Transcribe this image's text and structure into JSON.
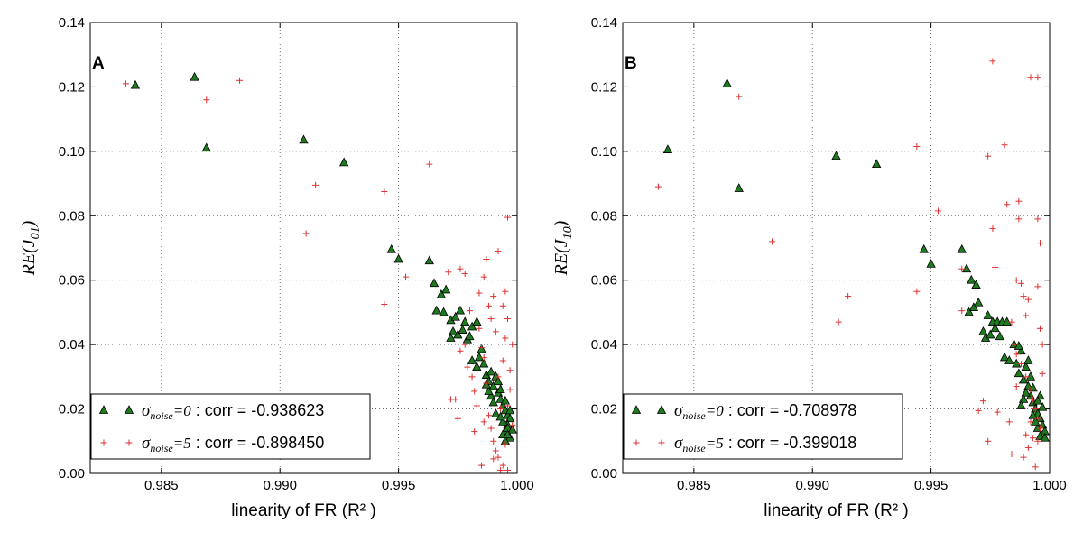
{
  "chart_data": [
    {
      "type": "scatter",
      "panel_letter": "A",
      "xlabel": "linearity of FR (R² )",
      "ylabel_text": "RE(J",
      "ylabel_sub": "01",
      "ylabel_close": ")",
      "xlim": [
        0.982,
        1.0
      ],
      "ylim": [
        0.0,
        0.14
      ],
      "xticks": [
        "0.985",
        "0.990",
        "0.995",
        "1.000"
      ],
      "xtick_values": [
        0.985,
        0.99,
        0.995,
        1.0
      ],
      "yticks": [
        "0.00",
        "0.02",
        "0.04",
        "0.06",
        "0.08",
        "0.10",
        "0.12",
        "0.14"
      ],
      "ytick_values": [
        0.0,
        0.02,
        0.04,
        0.06,
        0.08,
        0.1,
        0.12,
        0.14
      ],
      "grid": true,
      "legend_position": "lower-left",
      "series": [
        {
          "name": "σnoise=0 : corr = -0.938623",
          "legend_sigma": "σ",
          "legend_sub": "noise",
          "legend_eq": "=0",
          "legend_text": " : corr = -0.938623",
          "marker": "triangle",
          "color": "#1f7a1f",
          "points": [
            [
              0.9839,
              0.1205
            ],
            [
              0.9864,
              0.123
            ],
            [
              0.9869,
              0.101
            ],
            [
              0.991,
              0.1035
            ],
            [
              0.9927,
              0.0965
            ],
            [
              0.9947,
              0.0695
            ],
            [
              0.995,
              0.0665
            ],
            [
              0.9963,
              0.066
            ],
            [
              0.9965,
              0.059
            ],
            [
              0.9968,
              0.0555
            ],
            [
              0.997,
              0.057
            ],
            [
              0.9966,
              0.0505
            ],
            [
              0.9969,
              0.05
            ],
            [
              0.9972,
              0.0475
            ],
            [
              0.9974,
              0.0485
            ],
            [
              0.9976,
              0.0505
            ],
            [
              0.9978,
              0.047
            ],
            [
              0.9973,
              0.044
            ],
            [
              0.9972,
              0.042
            ],
            [
              0.9975,
              0.043
            ],
            [
              0.9977,
              0.0445
            ],
            [
              0.9979,
              0.0415
            ],
            [
              0.998,
              0.0425
            ],
            [
              0.9981,
              0.0455
            ],
            [
              0.9983,
              0.047
            ],
            [
              0.9981,
              0.035
            ],
            [
              0.9983,
              0.033
            ],
            [
              0.9984,
              0.036
            ],
            [
              0.9985,
              0.0385
            ],
            [
              0.9986,
              0.034
            ],
            [
              0.9987,
              0.0305
            ],
            [
              0.9988,
              0.0285
            ],
            [
              0.9989,
              0.0315
            ],
            [
              0.999,
              0.027
            ],
            [
              0.9991,
              0.03
            ],
            [
              0.9992,
              0.025
            ],
            [
              0.9993,
              0.023
            ],
            [
              0.9994,
              0.021
            ],
            [
              0.9995,
              0.0195
            ],
            [
              0.9996,
              0.018
            ],
            [
              0.9997,
              0.017
            ],
            [
              0.9996,
              0.015
            ],
            [
              0.9995,
              0.013
            ],
            [
              0.9994,
              0.012
            ],
            [
              0.9997,
              0.011
            ],
            [
              0.9996,
              0.014
            ],
            [
              0.9993,
              0.026
            ],
            [
              0.9992,
              0.0285
            ],
            [
              0.9989,
              0.024
            ],
            [
              0.9988,
              0.0255
            ],
            [
              0.9995,
              0.01
            ],
            [
              0.9994,
              0.016
            ],
            [
              0.9997,
              0.0195
            ],
            [
              0.9998,
              0.0135
            ],
            [
              0.999,
              0.022
            ],
            [
              0.9991,
              0.0185
            ],
            [
              0.9987,
              0.0275
            ],
            [
              0.9993,
              0.0175
            ],
            [
              0.9995,
              0.0225
            ],
            [
              0.9996,
              0.012
            ]
          ]
        },
        {
          "name": "σnoise=5 : corr = -0.898450",
          "legend_sigma": "σ",
          "legend_sub": "noise",
          "legend_eq": "=5",
          "legend_text": " : corr = -0.898450",
          "marker": "plus",
          "color": "#e03030",
          "points": [
            [
              0.9835,
              0.121
            ],
            [
              0.9869,
              0.116
            ],
            [
              0.9883,
              0.122
            ],
            [
              0.9911,
              0.0745
            ],
            [
              0.9915,
              0.0895
            ],
            [
              0.9944,
              0.0875
            ],
            [
              0.9944,
              0.0525
            ],
            [
              0.9963,
              0.096
            ],
            [
              0.9953,
              0.061
            ],
            [
              0.9971,
              0.0625
            ],
            [
              0.9976,
              0.0635
            ],
            [
              0.998,
              0.0505
            ],
            [
              0.9978,
              0.062
            ],
            [
              0.9984,
              0.056
            ],
            [
              0.9986,
              0.061
            ],
            [
              0.9987,
              0.0665
            ],
            [
              0.999,
              0.055
            ],
            [
              0.9992,
              0.069
            ],
            [
              0.9995,
              0.0565
            ],
            [
              0.9996,
              0.0795
            ],
            [
              0.9972,
              0.023
            ],
            [
              0.9974,
              0.023
            ],
            [
              0.9975,
              0.017
            ],
            [
              0.9976,
              0.038
            ],
            [
              0.9978,
              0.04
            ],
            [
              0.9979,
              0.033
            ],
            [
              0.9981,
              0.03
            ],
            [
              0.9982,
              0.0255
            ],
            [
              0.9983,
              0.021
            ],
            [
              0.9984,
              0.045
            ],
            [
              0.9985,
              0.039
            ],
            [
              0.9986,
              0.036
            ],
            [
              0.9987,
              0.028
            ],
            [
              0.9988,
              0.018
            ],
            [
              0.9989,
              0.014
            ],
            [
              0.999,
              0.01
            ],
            [
              0.9991,
              0.007
            ],
            [
              0.9992,
              0.005
            ],
            [
              0.9993,
              0.02
            ],
            [
              0.9994,
              0.035
            ],
            [
              0.9995,
              0.042
            ],
            [
              0.9996,
              0.048
            ],
            [
              0.9997,
              0.026
            ],
            [
              0.9998,
              0.015
            ],
            [
              0.9996,
              0.001
            ],
            [
              0.9985,
              0.0025
            ],
            [
              0.999,
              0.0045
            ],
            [
              0.9993,
              0.001
            ],
            [
              0.9995,
              0.009
            ],
            [
              0.9997,
              0.032
            ],
            [
              0.9994,
              0.052
            ],
            [
              0.9991,
              0.044
            ],
            [
              0.9989,
              0.048
            ],
            [
              0.9988,
              0.052
            ],
            [
              0.9998,
              0.04
            ],
            [
              0.9982,
              0.013
            ],
            [
              0.9986,
              0.016
            ],
            [
              0.9992,
              0.03
            ],
            [
              0.9996,
              0.021
            ],
            [
              0.9994,
              0.0025
            ]
          ]
        }
      ]
    },
    {
      "type": "scatter",
      "panel_letter": "B",
      "xlabel": "linearity of FR (R² )",
      "ylabel_text": "RE(J",
      "ylabel_sub": "10",
      "ylabel_close": ")",
      "xlim": [
        0.982,
        1.0
      ],
      "ylim": [
        0.0,
        0.14
      ],
      "xticks": [
        "0.985",
        "0.990",
        "0.995",
        "1.000"
      ],
      "xtick_values": [
        0.985,
        0.99,
        0.995,
        1.0
      ],
      "yticks": [
        "0.00",
        "0.02",
        "0.04",
        "0.06",
        "0.08",
        "0.10",
        "0.12",
        "0.14"
      ],
      "ytick_values": [
        0.0,
        0.02,
        0.04,
        0.06,
        0.08,
        0.1,
        0.12,
        0.14
      ],
      "grid": true,
      "legend_position": "lower-left",
      "series": [
        {
          "name": "σnoise=0 : corr = -0.708978",
          "legend_sigma": "σ",
          "legend_sub": "noise",
          "legend_eq": "=0",
          "legend_text": " : corr = -0.708978",
          "marker": "triangle",
          "color": "#1f7a1f",
          "points": [
            [
              0.9839,
              0.1005
            ],
            [
              0.9864,
              0.121
            ],
            [
              0.9869,
              0.0885
            ],
            [
              0.991,
              0.0985
            ],
            [
              0.9927,
              0.096
            ],
            [
              0.9947,
              0.0695
            ],
            [
              0.995,
              0.065
            ],
            [
              0.9963,
              0.0695
            ],
            [
              0.9965,
              0.0635
            ],
            [
              0.9967,
              0.06
            ],
            [
              0.9969,
              0.0585
            ],
            [
              0.9966,
              0.05
            ],
            [
              0.9968,
              0.0515
            ],
            [
              0.997,
              0.053
            ],
            [
              0.9972,
              0.044
            ],
            [
              0.9974,
              0.049
            ],
            [
              0.9976,
              0.047
            ],
            [
              0.9978,
              0.047
            ],
            [
              0.998,
              0.047
            ],
            [
              0.9982,
              0.047
            ],
            [
              0.9973,
              0.042
            ],
            [
              0.9975,
              0.043
            ],
            [
              0.9977,
              0.045
            ],
            [
              0.9979,
              0.0425
            ],
            [
              0.9981,
              0.036
            ],
            [
              0.9983,
              0.035
            ],
            [
              0.9985,
              0.04
            ],
            [
              0.9986,
              0.034
            ],
            [
              0.9987,
              0.031
            ],
            [
              0.9988,
              0.038
            ],
            [
              0.9989,
              0.029
            ],
            [
              0.999,
              0.033
            ],
            [
              0.9991,
              0.027
            ],
            [
              0.9992,
              0.024
            ],
            [
              0.9993,
              0.022
            ],
            [
              0.9994,
              0.02
            ],
            [
              0.9995,
              0.0185
            ],
            [
              0.9996,
              0.017
            ],
            [
              0.9997,
              0.015
            ],
            [
              0.9998,
              0.013
            ],
            [
              0.9996,
              0.0115
            ],
            [
              0.9995,
              0.014
            ],
            [
              0.9994,
              0.016
            ],
            [
              0.9993,
              0.0265
            ],
            [
              0.9992,
              0.03
            ],
            [
              0.999,
              0.025
            ],
            [
              0.9989,
              0.023
            ],
            [
              0.9988,
              0.021
            ],
            [
              0.9991,
              0.035
            ],
            [
              0.9997,
              0.0205
            ],
            [
              0.9998,
              0.011
            ],
            [
              0.9996,
              0.024
            ],
            [
              0.9987,
              0.0395
            ],
            [
              0.9995,
              0.0225
            ],
            [
              0.9993,
              0.018
            ]
          ]
        },
        {
          "name": "σnoise=5 : corr = -0.399018",
          "legend_sigma": "σ",
          "legend_sub": "noise",
          "legend_eq": "=5",
          "legend_text": " : corr = -0.399018",
          "marker": "plus",
          "color": "#e03030",
          "points": [
            [
              0.9835,
              0.089
            ],
            [
              0.9869,
              0.117
            ],
            [
              0.9883,
              0.072
            ],
            [
              0.9911,
              0.047
            ],
            [
              0.9915,
              0.055
            ],
            [
              0.9944,
              0.1015
            ],
            [
              0.9944,
              0.0565
            ],
            [
              0.9953,
              0.0815
            ],
            [
              0.9963,
              0.0635
            ],
            [
              0.9963,
              0.0505
            ],
            [
              0.9972,
              0.0225
            ],
            [
              0.997,
              0.0195
            ],
            [
              0.9974,
              0.01
            ],
            [
              0.9976,
              0.128
            ],
            [
              0.9976,
              0.076
            ],
            [
              0.9977,
              0.064
            ],
            [
              0.9978,
              0.019
            ],
            [
              0.9974,
              0.0985
            ],
            [
              0.9981,
              0.102
            ],
            [
              0.9982,
              0.0835
            ],
            [
              0.9984,
              0.047
            ],
            [
              0.9986,
              0.06
            ],
            [
              0.9987,
              0.0845
            ],
            [
              0.9987,
              0.079
            ],
            [
              0.9988,
              0.059
            ],
            [
              0.9989,
              0.055
            ],
            [
              0.999,
              0.049
            ],
            [
              0.9991,
              0.054
            ],
            [
              0.9992,
              0.123
            ],
            [
              0.9995,
              0.123
            ],
            [
              0.9995,
              0.079
            ],
            [
              0.9996,
              0.0715
            ],
            [
              0.9995,
              0.058
            ],
            [
              0.9996,
              0.045
            ],
            [
              0.9997,
              0.04
            ],
            [
              0.9985,
              0.04
            ],
            [
              0.9986,
              0.037
            ],
            [
              0.9988,
              0.034
            ],
            [
              0.999,
              0.03
            ],
            [
              0.9992,
              0.026
            ],
            [
              0.9993,
              0.023
            ],
            [
              0.9994,
              0.02
            ],
            [
              0.9995,
              0.017
            ],
            [
              0.9996,
              0.014
            ],
            [
              0.9993,
              0.011
            ],
            [
              0.9991,
              0.008
            ],
            [
              0.9989,
              0.005
            ],
            [
              0.9994,
              0.002
            ],
            [
              0.9984,
              0.006
            ],
            [
              0.999,
              0.012
            ],
            [
              0.9992,
              0.016
            ],
            [
              0.9997,
              0.031
            ],
            [
              0.9986,
              0.027
            ],
            [
              0.9983,
              0.016
            ],
            [
              0.9995,
              0.01
            ]
          ]
        }
      ]
    }
  ]
}
